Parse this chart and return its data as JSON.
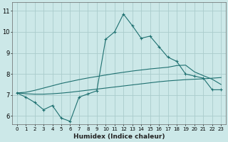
{
  "xlabel": "Humidex (Indice chaleur)",
  "x": [
    0,
    1,
    2,
    3,
    4,
    5,
    6,
    7,
    8,
    9,
    10,
    11,
    12,
    13,
    14,
    15,
    16,
    17,
    18,
    19,
    20,
    21,
    22,
    23
  ],
  "y_main": [
    7.1,
    6.9,
    6.65,
    6.3,
    6.5,
    5.9,
    5.75,
    6.9,
    7.05,
    7.2,
    9.65,
    10.0,
    10.85,
    10.3,
    9.7,
    9.8,
    9.3,
    8.8,
    8.6,
    8.0,
    7.9,
    7.8,
    7.25,
    7.25
  ],
  "y_upper": [
    7.1,
    7.13,
    7.22,
    7.33,
    7.44,
    7.55,
    7.64,
    7.73,
    7.81,
    7.88,
    7.95,
    8.02,
    8.08,
    8.14,
    8.19,
    8.24,
    8.28,
    8.32,
    8.4,
    8.42,
    8.1,
    7.92,
    7.75,
    7.5
  ],
  "y_lower": [
    7.1,
    7.06,
    7.04,
    7.04,
    7.06,
    7.09,
    7.13,
    7.18,
    7.23,
    7.28,
    7.33,
    7.38,
    7.43,
    7.48,
    7.53,
    7.58,
    7.63,
    7.67,
    7.7,
    7.73,
    7.75,
    7.77,
    7.8,
    7.83
  ],
  "bg_color": "#cce8e8",
  "grid_color": "#aacccc",
  "line_color": "#1e7070",
  "ylim": [
    5.6,
    11.4
  ],
  "xlim": [
    -0.5,
    23.5
  ],
  "yticks": [
    6,
    7,
    8,
    9,
    10,
    11
  ],
  "xticks": [
    0,
    1,
    2,
    3,
    4,
    5,
    6,
    7,
    8,
    9,
    10,
    11,
    12,
    13,
    14,
    15,
    16,
    17,
    18,
    19,
    20,
    21,
    22,
    23
  ]
}
